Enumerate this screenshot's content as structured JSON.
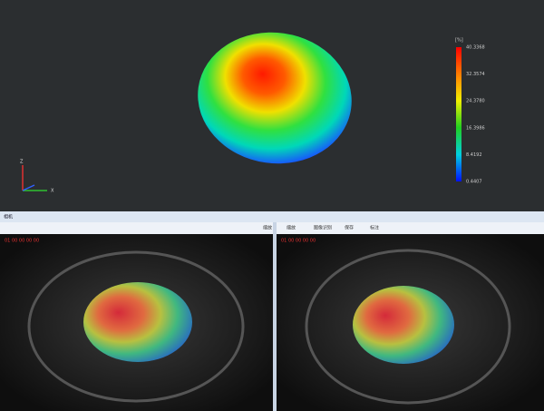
{
  "view3d": {
    "unit": "[%]",
    "scale_labels": [
      "40.3368",
      "32.3574",
      "24.3780",
      "16.3986",
      "8.4192",
      "0.4407"
    ],
    "axes": [
      "Z",
      "X"
    ]
  },
  "pane_title": "相机",
  "left_panel": {
    "toolbar": [
      "缩放"
    ],
    "stamp": "01 00 00 00 00"
  },
  "right_panel": {
    "toolbar": [
      "缩放",
      "图像识别",
      "保存",
      "标注"
    ],
    "stamp": "01 00 00 00 00"
  }
}
